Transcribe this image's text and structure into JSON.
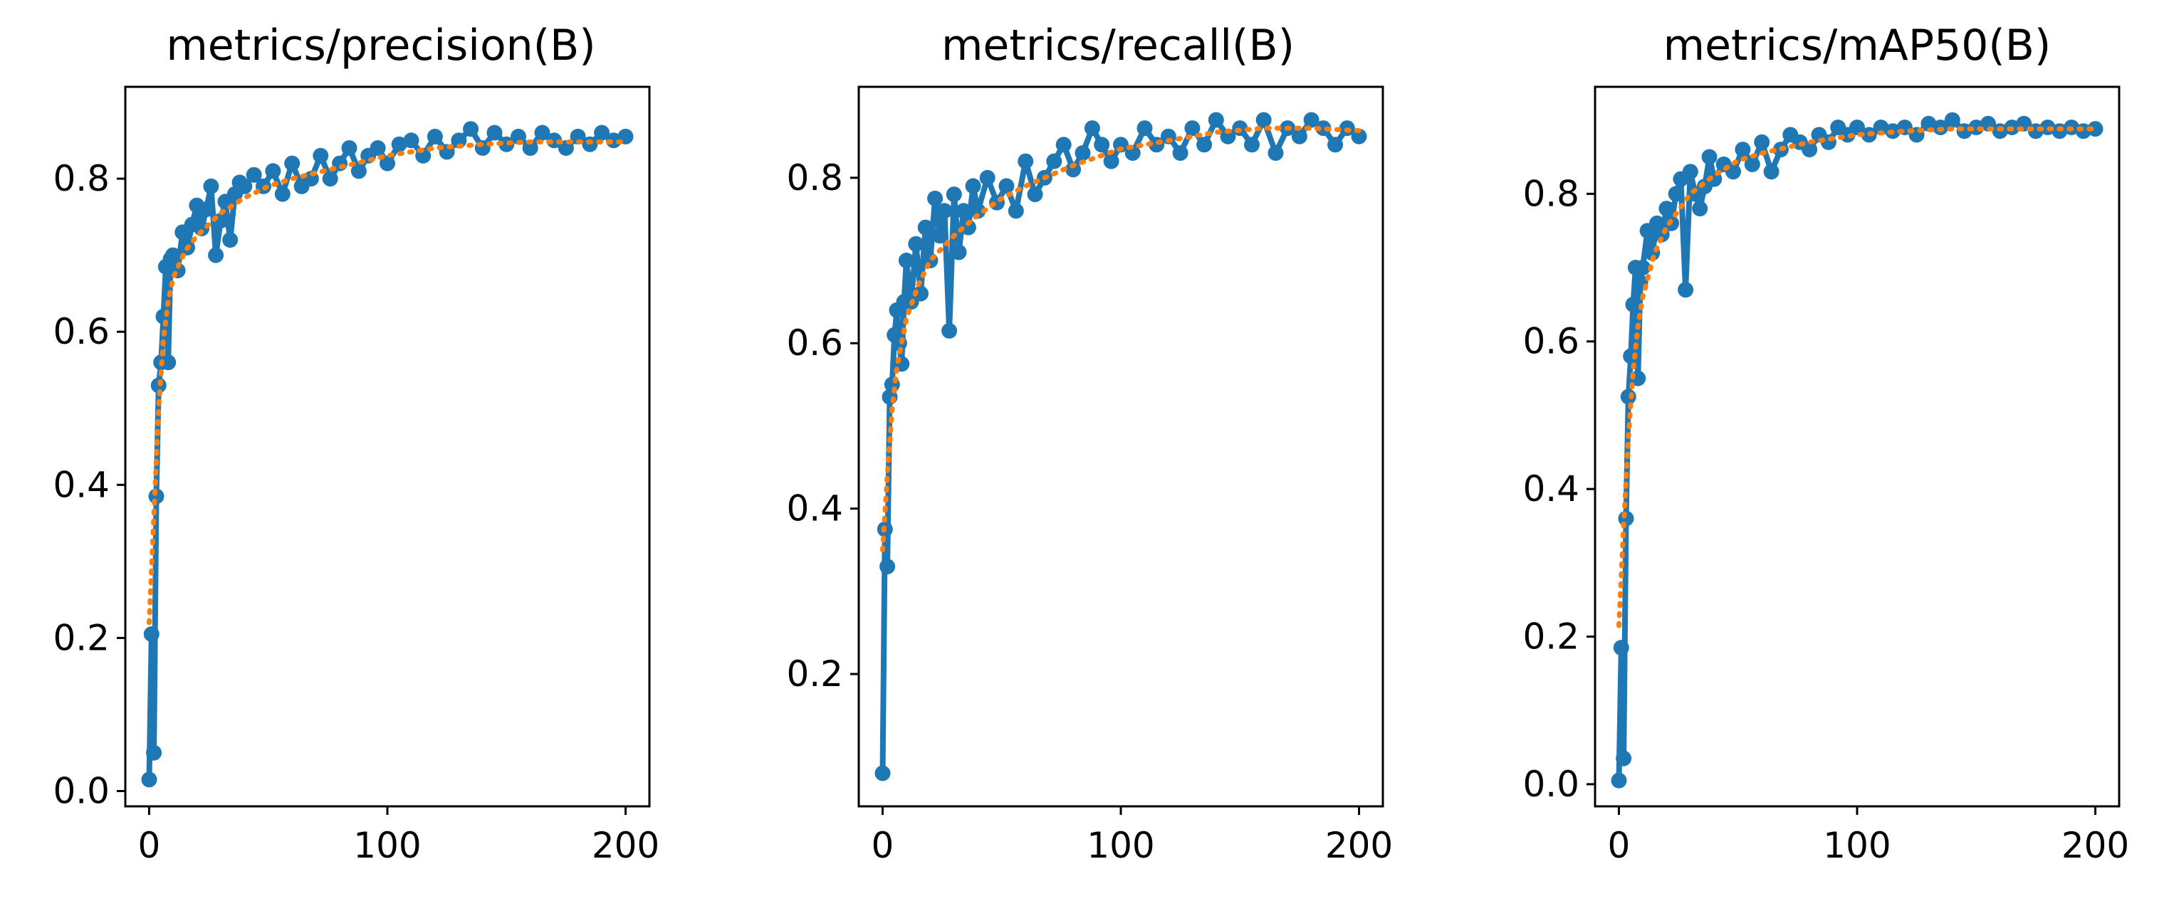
{
  "colors": {
    "results_line": "#1f77b4",
    "smooth_line": "#ff7f0e",
    "background": "#ffffff",
    "axes": "#000000"
  },
  "chart_data": [
    {
      "type": "line",
      "title": "metrics/precision(B)",
      "xlabel": "",
      "ylabel": "",
      "xlim": [
        -10,
        210
      ],
      "ylim": [
        -0.02,
        0.92
      ],
      "xticks": [
        0,
        100,
        200
      ],
      "xtick_labels": [
        "0",
        "100",
        "200"
      ],
      "yticks": [
        0.0,
        0.2,
        0.4,
        0.6,
        0.8
      ],
      "ytick_labels": [
        "0.0",
        "0.2",
        "0.4",
        "0.6",
        "0.8"
      ],
      "grid": false,
      "legend": "none",
      "series": [
        {
          "style": "line-with-markers",
          "color": "#1f77b4",
          "x": [
            0,
            1,
            2,
            3,
            4,
            5,
            6,
            7,
            8,
            9,
            10,
            12,
            14,
            16,
            18,
            20,
            22,
            24,
            26,
            28,
            30,
            32,
            34,
            36,
            38,
            40,
            44,
            48,
            52,
            56,
            60,
            64,
            68,
            72,
            76,
            80,
            84,
            88,
            92,
            96,
            100,
            105,
            110,
            115,
            120,
            125,
            130,
            135,
            140,
            145,
            150,
            155,
            160,
            165,
            170,
            175,
            180,
            185,
            190,
            195,
            200
          ],
          "y": [
            0.015,
            0.205,
            0.05,
            0.385,
            0.53,
            0.56,
            0.62,
            0.685,
            0.56,
            0.695,
            0.7,
            0.68,
            0.73,
            0.71,
            0.74,
            0.765,
            0.735,
            0.76,
            0.79,
            0.7,
            0.745,
            0.77,
            0.72,
            0.78,
            0.795,
            0.79,
            0.805,
            0.79,
            0.81,
            0.78,
            0.82,
            0.79,
            0.8,
            0.83,
            0.8,
            0.82,
            0.84,
            0.81,
            0.83,
            0.84,
            0.82,
            0.845,
            0.85,
            0.83,
            0.855,
            0.835,
            0.85,
            0.865,
            0.84,
            0.86,
            0.845,
            0.855,
            0.84,
            0.86,
            0.85,
            0.84,
            0.855,
            0.845,
            0.86,
            0.85,
            0.855
          ]
        },
        {
          "style": "dotted",
          "color": "#ff7f0e",
          "x": [
            0,
            2,
            4,
            6,
            8,
            10,
            15,
            20,
            30,
            40,
            50,
            60,
            80,
            100,
            120,
            140,
            160,
            180,
            200
          ],
          "y": [
            0.22,
            0.36,
            0.5,
            0.59,
            0.64,
            0.67,
            0.705,
            0.725,
            0.755,
            0.775,
            0.79,
            0.8,
            0.815,
            0.83,
            0.84,
            0.845,
            0.848,
            0.848,
            0.848
          ]
        }
      ]
    },
    {
      "type": "line",
      "title": "metrics/recall(B)",
      "xlabel": "",
      "ylabel": "",
      "xlim": [
        -10,
        210
      ],
      "ylim": [
        0.04,
        0.91
      ],
      "xticks": [
        0,
        100,
        200
      ],
      "xtick_labels": [
        "0",
        "100",
        "200"
      ],
      "yticks": [
        0.2,
        0.4,
        0.6,
        0.8
      ],
      "ytick_labels": [
        "0.2",
        "0.4",
        "0.6",
        "0.8"
      ],
      "grid": false,
      "legend": "none",
      "series": [
        {
          "style": "line-with-markers",
          "color": "#1f77b4",
          "x": [
            0,
            1,
            2,
            3,
            4,
            5,
            6,
            7,
            8,
            9,
            10,
            12,
            14,
            16,
            18,
            20,
            22,
            24,
            26,
            28,
            30,
            32,
            34,
            36,
            38,
            40,
            44,
            48,
            52,
            56,
            60,
            64,
            68,
            72,
            76,
            80,
            84,
            88,
            92,
            96,
            100,
            105,
            110,
            115,
            120,
            125,
            130,
            135,
            140,
            145,
            150,
            155,
            160,
            165,
            170,
            175,
            180,
            185,
            190,
            195,
            200
          ],
          "y": [
            0.08,
            0.375,
            0.33,
            0.535,
            0.55,
            0.61,
            0.64,
            0.6,
            0.575,
            0.65,
            0.7,
            0.65,
            0.72,
            0.66,
            0.74,
            0.7,
            0.775,
            0.73,
            0.76,
            0.615,
            0.78,
            0.71,
            0.76,
            0.74,
            0.79,
            0.76,
            0.8,
            0.77,
            0.79,
            0.76,
            0.82,
            0.78,
            0.8,
            0.82,
            0.84,
            0.81,
            0.83,
            0.86,
            0.84,
            0.82,
            0.84,
            0.83,
            0.86,
            0.84,
            0.85,
            0.83,
            0.86,
            0.84,
            0.87,
            0.85,
            0.86,
            0.84,
            0.87,
            0.83,
            0.86,
            0.85,
            0.87,
            0.86,
            0.84,
            0.86,
            0.85
          ]
        },
        {
          "style": "dotted",
          "color": "#ff7f0e",
          "x": [
            0,
            2,
            4,
            6,
            8,
            10,
            15,
            20,
            30,
            40,
            50,
            60,
            80,
            100,
            120,
            140,
            160,
            180,
            200
          ],
          "y": [
            0.35,
            0.44,
            0.52,
            0.57,
            0.6,
            0.63,
            0.67,
            0.7,
            0.73,
            0.755,
            0.775,
            0.79,
            0.815,
            0.835,
            0.845,
            0.855,
            0.86,
            0.86,
            0.857
          ]
        }
      ]
    },
    {
      "type": "line",
      "title": "metrics/mAP50(B)",
      "xlabel": "",
      "ylabel": "",
      "xlim": [
        -10,
        210
      ],
      "ylim": [
        -0.03,
        0.945
      ],
      "xticks": [
        0,
        100,
        200
      ],
      "xtick_labels": [
        "0",
        "100",
        "200"
      ],
      "yticks": [
        0.0,
        0.2,
        0.4,
        0.6,
        0.8
      ],
      "ytick_labels": [
        "0.0",
        "0.2",
        "0.4",
        "0.6",
        "0.8"
      ],
      "grid": false,
      "legend": "none",
      "series": [
        {
          "style": "line-with-markers",
          "color": "#1f77b4",
          "x": [
            0,
            1,
            2,
            3,
            4,
            5,
            6,
            7,
            8,
            9,
            10,
            12,
            14,
            16,
            18,
            20,
            22,
            24,
            26,
            28,
            30,
            32,
            34,
            36,
            38,
            40,
            44,
            48,
            52,
            56,
            60,
            64,
            68,
            72,
            76,
            80,
            84,
            88,
            92,
            96,
            100,
            105,
            110,
            115,
            120,
            125,
            130,
            135,
            140,
            145,
            150,
            155,
            160,
            165,
            170,
            175,
            180,
            185,
            190,
            195,
            200
          ],
          "y": [
            0.005,
            0.185,
            0.035,
            0.36,
            0.525,
            0.58,
            0.65,
            0.7,
            0.55,
            0.68,
            0.7,
            0.75,
            0.72,
            0.76,
            0.745,
            0.78,
            0.76,
            0.8,
            0.82,
            0.67,
            0.83,
            0.8,
            0.78,
            0.81,
            0.85,
            0.82,
            0.84,
            0.83,
            0.86,
            0.84,
            0.87,
            0.83,
            0.86,
            0.88,
            0.87,
            0.86,
            0.88,
            0.87,
            0.89,
            0.88,
            0.89,
            0.88,
            0.89,
            0.885,
            0.89,
            0.88,
            0.895,
            0.89,
            0.9,
            0.885,
            0.89,
            0.895,
            0.885,
            0.89,
            0.895,
            0.885,
            0.89,
            0.885,
            0.89,
            0.885,
            0.888
          ]
        },
        {
          "style": "dotted",
          "color": "#ff7f0e",
          "x": [
            0,
            2,
            4,
            6,
            8,
            10,
            15,
            20,
            30,
            40,
            50,
            60,
            80,
            100,
            120,
            140,
            160,
            180,
            200
          ],
          "y": [
            0.215,
            0.35,
            0.47,
            0.56,
            0.62,
            0.66,
            0.72,
            0.755,
            0.8,
            0.825,
            0.845,
            0.855,
            0.87,
            0.88,
            0.885,
            0.888,
            0.888,
            0.888,
            0.888
          ]
        }
      ]
    }
  ]
}
